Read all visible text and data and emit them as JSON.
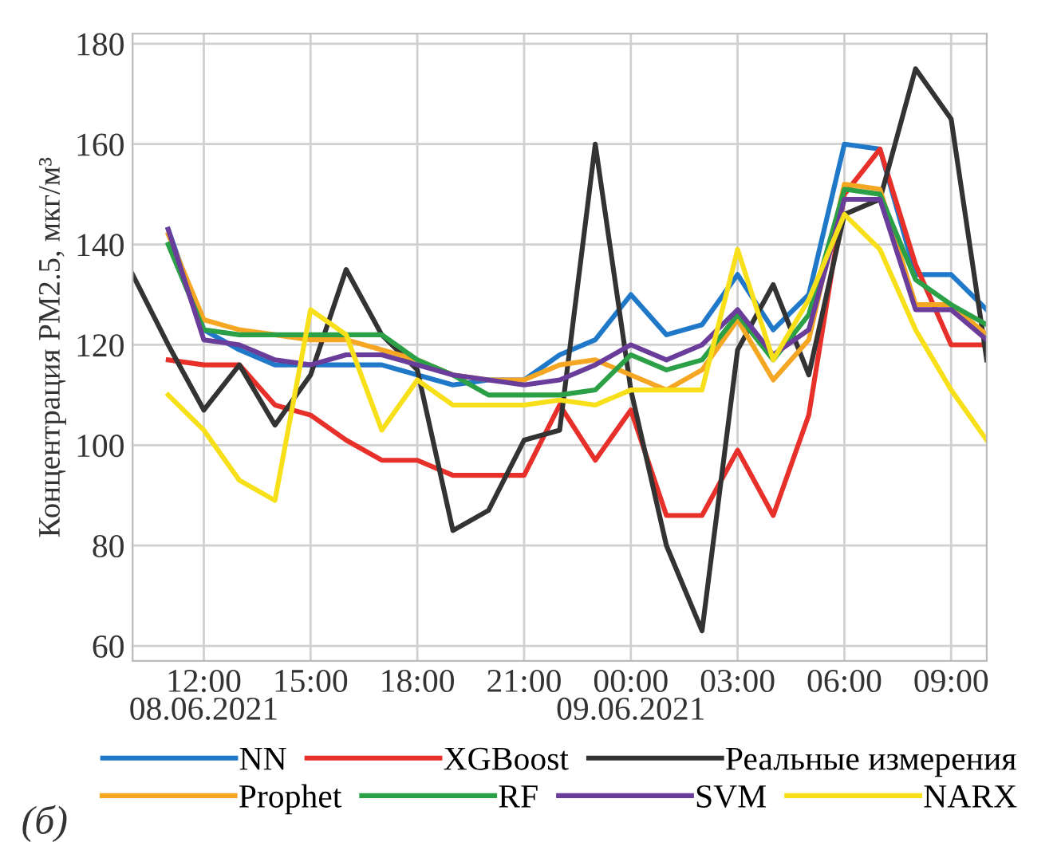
{
  "chart_data": {
    "type": "line",
    "ylabel": "Концентрация PM2.5, мкг/м³",
    "xlim": [
      "2021-06-08T10:00",
      "2021-06-09T10:00"
    ],
    "ylim": [
      57,
      182
    ],
    "xticks": [
      {
        "value": "2021-06-08T12:00",
        "label": "12:00\n08.06.2021"
      },
      {
        "value": "2021-06-08T15:00",
        "label": "15:00"
      },
      {
        "value": "2021-06-08T18:00",
        "label": "18:00"
      },
      {
        "value": "2021-06-08T21:00",
        "label": "21:00"
      },
      {
        "value": "2021-06-09T00:00",
        "label": "00:00\n09.06.2021"
      },
      {
        "value": "2021-06-09T03:00",
        "label": "03:00"
      },
      {
        "value": "2021-06-09T06:00",
        "label": "06:00"
      },
      {
        "value": "2021-06-09T09:00",
        "label": "09:00"
      }
    ],
    "yticks": [
      60,
      80,
      100,
      120,
      140,
      160,
      180
    ],
    "grid": true,
    "legend": "bottom",
    "marker": "none",
    "line_style": "solid",
    "annotations": [
      "(б)"
    ],
    "x": [
      "2021-06-08T11:00",
      "2021-06-08T12:00",
      "2021-06-08T13:00",
      "2021-06-08T14:00",
      "2021-06-08T15:00",
      "2021-06-08T16:00",
      "2021-06-08T17:00",
      "2021-06-08T18:00",
      "2021-06-08T19:00",
      "2021-06-08T20:00",
      "2021-06-08T21:00",
      "2021-06-08T22:00",
      "2021-06-08T23:00",
      "2021-06-09T00:00",
      "2021-06-09T01:00",
      "2021-06-09T02:00",
      "2021-06-09T03:00",
      "2021-06-09T04:00",
      "2021-06-09T05:00",
      "2021-06-09T06:00",
      "2021-06-09T07:00",
      "2021-06-09T08:00",
      "2021-06-09T09:00",
      "2021-06-09T10:00"
    ],
    "series": [
      {
        "name": "NN",
        "color": "#1f78c8",
        "values": [
          143,
          123,
          119,
          116,
          116,
          116,
          116,
          114,
          112,
          113,
          113,
          118,
          121,
          130,
          122,
          124,
          134,
          123,
          130,
          160,
          159,
          134,
          134,
          127
        ]
      },
      {
        "name": "XGBoost",
        "color": "#e8302a",
        "values": [
          117,
          116,
          116,
          108,
          106,
          101,
          97,
          97,
          94,
          94,
          94,
          108,
          97,
          107,
          86,
          86,
          99,
          86,
          106,
          150,
          159,
          136,
          120,
          120
        ]
      },
      {
        "name": "Реальные измерения",
        "color": "#333333",
        "x": [
          "2021-06-08T10:00",
          "2021-06-08T11:00",
          "2021-06-08T12:00",
          "2021-06-08T13:00",
          "2021-06-08T14:00",
          "2021-06-08T15:00",
          "2021-06-08T16:00",
          "2021-06-08T17:00",
          "2021-06-08T18:00",
          "2021-06-08T19:00",
          "2021-06-08T20:00",
          "2021-06-08T21:00",
          "2021-06-08T22:00",
          "2021-06-08T23:00",
          "2021-06-09T00:00",
          "2021-06-09T01:00",
          "2021-06-09T02:00",
          "2021-06-09T03:00",
          "2021-06-09T04:00",
          "2021-06-09T05:00",
          "2021-06-09T06:00",
          "2021-06-09T07:00",
          "2021-06-09T08:00",
          "2021-06-09T09:00",
          "2021-06-09T10:00"
        ],
        "values": [
          134,
          120,
          107,
          116,
          104,
          114,
          135,
          122,
          115,
          83,
          87,
          101,
          103,
          160,
          111,
          80,
          63,
          119,
          132,
          114,
          146,
          149,
          175,
          165,
          117
        ]
      },
      {
        "name": "Prophet",
        "color": "#f5a623",
        "values": [
          142,
          125,
          123,
          122,
          121,
          121,
          119,
          117,
          114,
          113,
          113,
          116,
          117,
          114,
          111,
          115,
          125,
          113,
          121,
          152,
          151,
          128,
          128,
          122
        ]
      },
      {
        "name": "RF",
        "color": "#2ca047",
        "values": [
          140,
          123,
          122,
          122,
          122,
          122,
          122,
          117,
          114,
          110,
          110,
          110,
          111,
          118,
          115,
          117,
          126,
          117,
          126,
          151,
          150,
          133,
          128,
          124
        ]
      },
      {
        "name": "SVM",
        "color": "#6a3d9a",
        "values": [
          143,
          121,
          120,
          117,
          116,
          118,
          118,
          116,
          114,
          113,
          112,
          113,
          116,
          120,
          117,
          120,
          127,
          118,
          123,
          149,
          149,
          127,
          127,
          121
        ]
      },
      {
        "name": "NARX",
        "color": "#f7e01a",
        "values": [
          110,
          103,
          93,
          89,
          127,
          122,
          103,
          113,
          108,
          108,
          108,
          109,
          108,
          111,
          111,
          111,
          139,
          117,
          129,
          146,
          139,
          123,
          111,
          101
        ]
      }
    ]
  }
}
